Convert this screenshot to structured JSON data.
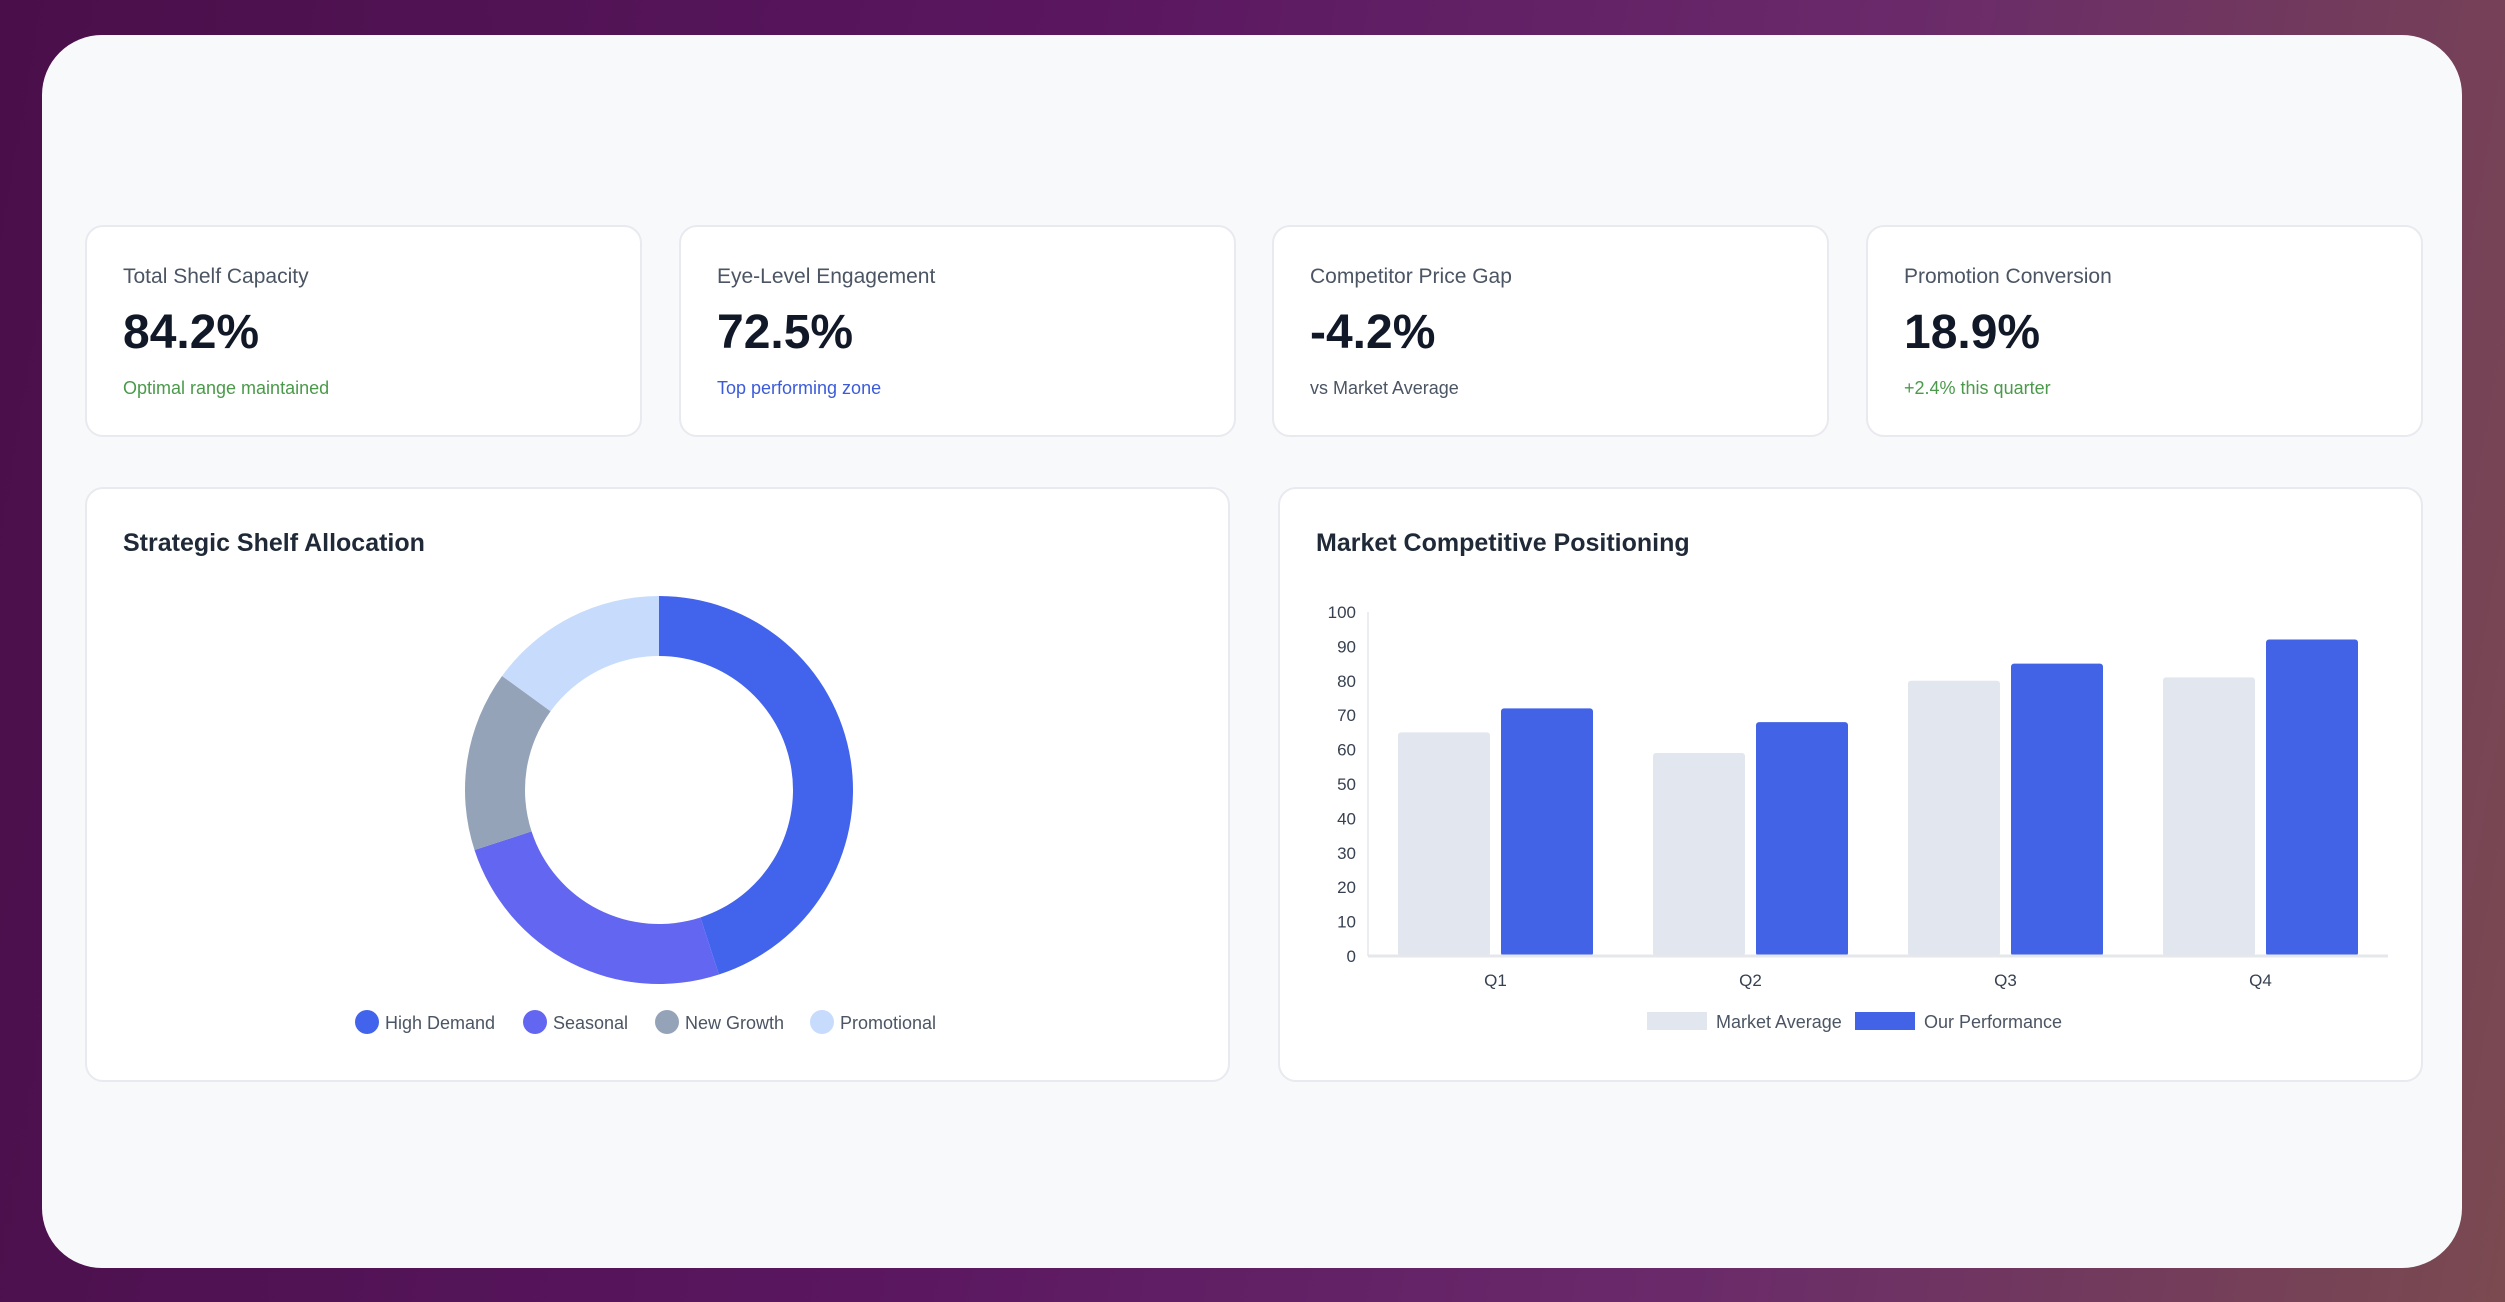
{
  "kpis": [
    {
      "label": "Total Shelf Capacity",
      "value": "84.2%",
      "sub": "Optimal range maintained",
      "sub_color": "#4a9a4a"
    },
    {
      "label": "Eye-Level Engagement",
      "value": "72.5%",
      "sub": "Top performing zone",
      "sub_color": "#3b5bdb"
    },
    {
      "label": "Competitor Price Gap",
      "value": "-4.2%",
      "sub": "vs Market Average",
      "sub_color": "#4b5563"
    },
    {
      "label": "Promotion Conversion",
      "value": "18.9%",
      "sub": "+2.4% this quarter",
      "sub_color": "#4a9a4a"
    }
  ],
  "chart_data": [
    {
      "type": "pie",
      "title": "Strategic Shelf Allocation",
      "donut": true,
      "labels": [
        "High Demand",
        "Seasonal",
        "New Growth",
        "Promotional"
      ],
      "values": [
        45,
        25,
        15,
        15
      ],
      "colors": [
        "#4263eb",
        "#6366f1",
        "#94a3b8",
        "#c7dbfc"
      ],
      "legend": "bottom"
    },
    {
      "type": "bar",
      "title": "Market Competitive Positioning",
      "categories": [
        "Q1",
        "Q2",
        "Q3",
        "Q4"
      ],
      "series": [
        {
          "name": "Market Average",
          "values": [
            65,
            59,
            80,
            81
          ],
          "color": "#e2e6ef"
        },
        {
          "name": "Our Performance",
          "values": [
            72,
            68,
            85,
            92
          ],
          "color": "#4263e6"
        }
      ],
      "ylim": [
        0,
        100
      ],
      "yticks": [
        0,
        10,
        20,
        30,
        40,
        50,
        60,
        70,
        80,
        90,
        100
      ],
      "legend": "bottom",
      "grid": false
    }
  ]
}
